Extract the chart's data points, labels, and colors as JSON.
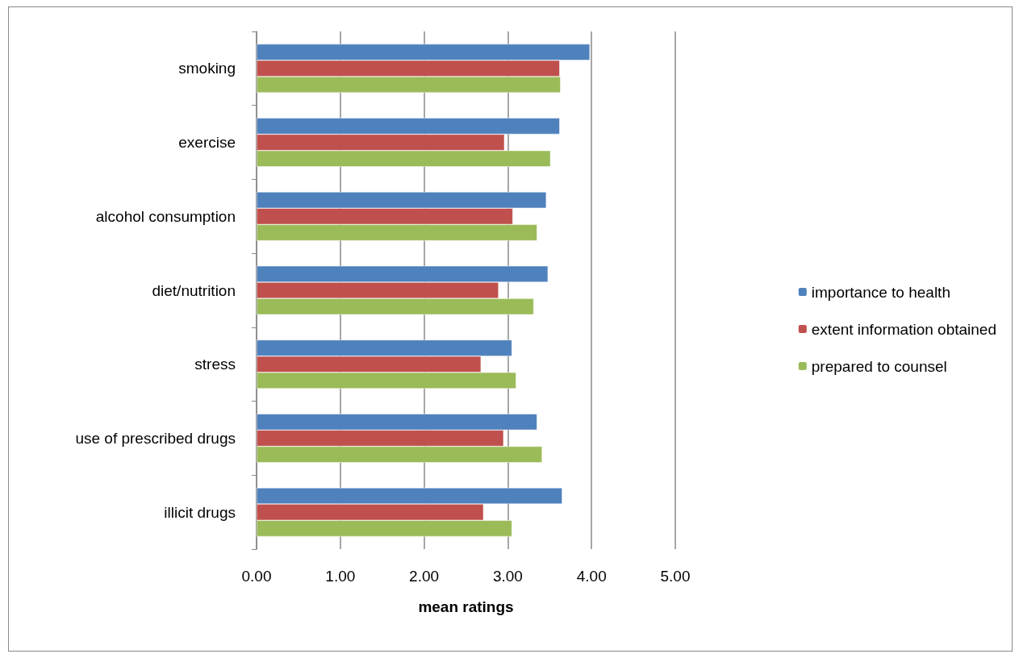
{
  "chart_data": {
    "type": "bar",
    "orientation": "horizontal",
    "xlabel": "mean ratings",
    "categories": [
      "smoking",
      "exercise",
      "alcohol consumption",
      "diet/nutrition",
      "stress",
      "use of prescribed drugs",
      "illicit drugs"
    ],
    "series": [
      {
        "name": "importance to health",
        "color": "#4f81bd",
        "values": [
          3.98,
          3.62,
          3.46,
          3.48,
          3.05,
          3.35,
          3.65
        ]
      },
      {
        "name": "extent information obtained",
        "color": "#c0504d",
        "values": [
          3.62,
          2.96,
          3.06,
          2.89,
          2.68,
          2.95,
          2.71
        ]
      },
      {
        "name": "prepared to counsel",
        "color": "#9bbb59",
        "values": [
          3.63,
          3.51,
          3.35,
          3.31,
          3.1,
          3.41,
          3.05
        ]
      }
    ],
    "xlim": [
      0,
      5
    ],
    "xticks": [
      {
        "value": 0,
        "label": "0.00"
      },
      {
        "value": 1,
        "label": "1.00"
      },
      {
        "value": 2,
        "label": "2.00"
      },
      {
        "value": 3,
        "label": "3.00"
      },
      {
        "value": 4,
        "label": "4.00"
      },
      {
        "value": 5,
        "label": "5.00"
      }
    ],
    "grid": "x",
    "legend": "right"
  }
}
